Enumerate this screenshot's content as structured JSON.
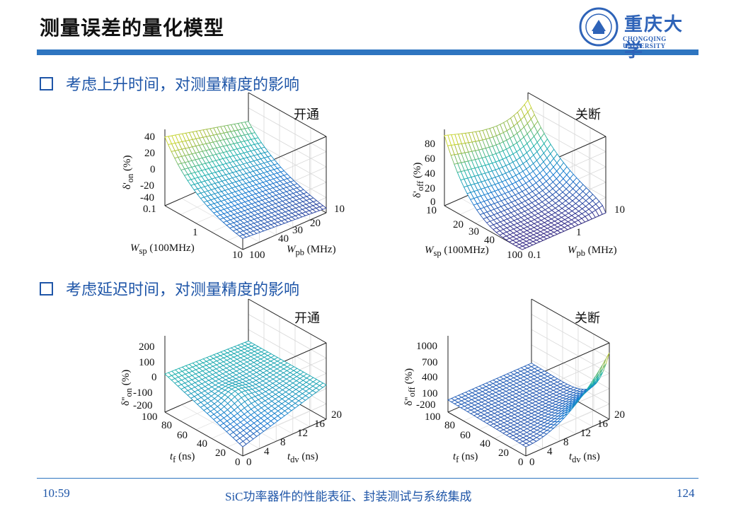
{
  "slide": {
    "title": "测量误差的量化模型",
    "logo": {
      "name": "重庆大学",
      "subtitle": "CHONGQING UNIVERSITY"
    },
    "bullet1": "考虑上升时间，对测量精度的影响",
    "bullet2": "考虑延迟时间，对测量精度的影响",
    "footer": {
      "time": "10:59",
      "center": "SiC功率器件的性能表征、封装测试与系统集成",
      "page": "124"
    },
    "colors": {
      "title_bar": "#2e75c0",
      "bullet": "#1f56a8"
    }
  },
  "plots": [
    {
      "title": "开通",
      "zlabel_main": "δ'",
      "zlabel_sub": "on",
      "zlabel_unit": "(%)",
      "zticks": [
        "40",
        "20",
        "0",
        "-20",
        "-40"
      ],
      "xlabel_main": "W",
      "xlabel_sub": "sp",
      "xlabel_unit": "(100MHz)",
      "xticks": [
        "0.1",
        "1",
        "10"
      ],
      "ylabel_main": "W",
      "ylabel_sub": "pb",
      "ylabel_unit": "(MHz)",
      "yticks": [
        "100",
        "40",
        "30",
        "20",
        "10"
      ],
      "colormap": "parula"
    },
    {
      "title": "关断",
      "zlabel_main": "δ'",
      "zlabel_sub": "off",
      "zlabel_unit": "(%)",
      "zticks": [
        "80",
        "60",
        "40",
        "20",
        "0"
      ],
      "xlabel_main": "W",
      "xlabel_sub": "sp",
      "xlabel_unit": "(100MHz)",
      "xticks": [
        "10",
        "20",
        "30",
        "40",
        "100"
      ],
      "ylabel_main": "W",
      "ylabel_sub": "pb",
      "ylabel_unit": "(MHz)",
      "yticks": [
        "0.1",
        "1",
        "10"
      ],
      "colormap": "parula"
    },
    {
      "title": "开通",
      "zlabel_main": "δ''",
      "zlabel_sub": "on",
      "zlabel_unit": "(%)",
      "zticks": [
        "200",
        "100",
        "0",
        "-100",
        "-200"
      ],
      "xlabel_main": "t",
      "xlabel_sub": "f",
      "xlabel_unit": "(ns)",
      "xticks": [
        "100",
        "80",
        "60",
        "40",
        "20",
        "0"
      ],
      "ylabel_main": "t",
      "ylabel_sub": "dv",
      "ylabel_unit": "(ns)",
      "yticks": [
        "0",
        "4",
        "8",
        "12",
        "16",
        "20"
      ],
      "colormap": "parula"
    },
    {
      "title": "关断",
      "zlabel_main": "δ''",
      "zlabel_sub": "off",
      "zlabel_unit": "(%)",
      "zticks": [
        "1000",
        "700",
        "400",
        "100",
        "-200"
      ],
      "xlabel_main": "t",
      "xlabel_sub": "f",
      "xlabel_unit": "(ns)",
      "xticks": [
        "100",
        "80",
        "60",
        "40",
        "20",
        "0"
      ],
      "ylabel_main": "t",
      "ylabel_sub": "dv",
      "ylabel_unit": "(ns)",
      "yticks": [
        "0",
        "4",
        "8",
        "12",
        "16",
        "20"
      ],
      "colormap": "parula"
    }
  ]
}
